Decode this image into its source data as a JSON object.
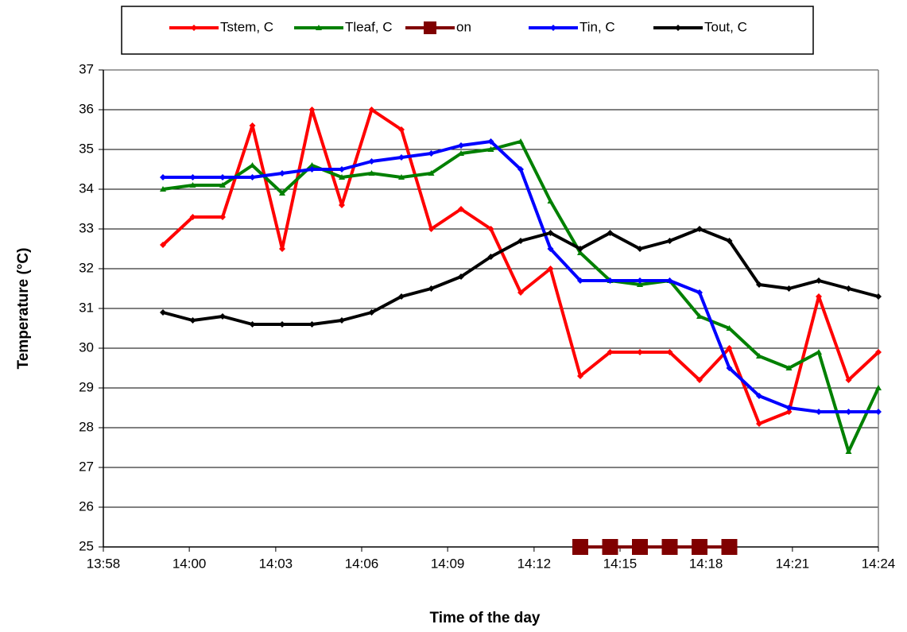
{
  "chart_data": {
    "type": "line",
    "x_label": "Time of the day",
    "y_label": "Temperature (°C)",
    "x": [
      "14:00",
      "14:01",
      "14:02",
      "14:03",
      "14:04",
      "14:05",
      "14:06",
      "14:07",
      "14:08",
      "14:09",
      "14:10",
      "14:11",
      "14:12",
      "14:13",
      "14:14",
      "14:15",
      "14:16",
      "14:17",
      "14:18",
      "14:19",
      "14:20",
      "14:21",
      "14:22",
      "14:23",
      "14:24"
    ],
    "series": [
      {
        "name": "Tstem, C",
        "color": "#ff0000",
        "marker": "diamond",
        "values": [
          32.6,
          33.3,
          33.3,
          35.6,
          32.5,
          36.0,
          33.6,
          36.0,
          35.5,
          33.0,
          33.5,
          33.0,
          31.4,
          32.0,
          29.3,
          29.9,
          29.9,
          29.9,
          29.2,
          30.0,
          28.1,
          28.4,
          31.3,
          29.2,
          29.9
        ]
      },
      {
        "name": "Tleaf, C",
        "color": "#008000",
        "marker": "triangle",
        "values": [
          34.0,
          34.1,
          34.1,
          34.6,
          33.9,
          34.6,
          34.3,
          34.4,
          34.3,
          34.4,
          34.9,
          35.0,
          35.2,
          33.7,
          32.4,
          31.7,
          31.6,
          31.7,
          30.8,
          30.5,
          29.8,
          29.5,
          29.9,
          27.4,
          29.0
        ]
      },
      {
        "name": "on",
        "color": "#800000",
        "marker": "square",
        "values": [
          null,
          null,
          null,
          null,
          null,
          null,
          null,
          null,
          null,
          null,
          null,
          null,
          null,
          null,
          25,
          25,
          25,
          25,
          25,
          25,
          null,
          null,
          null,
          null,
          null
        ]
      },
      {
        "name": "Tin, C",
        "color": "#0000ff",
        "marker": "diamond",
        "values": [
          34.3,
          34.3,
          34.3,
          34.3,
          34.4,
          34.5,
          34.5,
          34.7,
          34.8,
          34.9,
          35.1,
          35.2,
          34.5,
          32.5,
          31.7,
          31.7,
          31.7,
          31.7,
          31.4,
          29.5,
          28.8,
          28.5,
          28.4,
          28.4,
          28.4
        ]
      },
      {
        "name": "Tout, C",
        "color": "#000000",
        "marker": "diamond",
        "values": [
          30.9,
          30.7,
          30.8,
          30.6,
          30.6,
          30.6,
          30.7,
          30.9,
          31.3,
          31.5,
          31.8,
          32.3,
          32.7,
          32.9,
          32.5,
          32.9,
          32.5,
          32.7,
          33.0,
          32.7,
          31.6,
          31.5,
          31.7,
          31.5,
          31.3
        ]
      }
    ],
    "xlim": [
      "13:58",
      "14:24"
    ],
    "xticks": [
      {
        "value": "13:58:00",
        "label": "13:58"
      },
      {
        "value": "14:00:53",
        "label": "14:00"
      },
      {
        "value": "14:03:47",
        "label": "14:03"
      },
      {
        "value": "14:06:40",
        "label": "14:06"
      },
      {
        "value": "14:09:33",
        "label": "14:09"
      },
      {
        "value": "14:12:27",
        "label": "14:12"
      },
      {
        "value": "14:15:20",
        "label": "14:15"
      },
      {
        "value": "14:18:13",
        "label": "14:18"
      },
      {
        "value": "14:21:07",
        "label": "14:21"
      },
      {
        "value": "14:24:00",
        "label": "14:24"
      }
    ],
    "ylim": [
      25,
      37
    ],
    "yticks": [
      25,
      26,
      27,
      28,
      29,
      30,
      31,
      32,
      33,
      34,
      35,
      36,
      37
    ],
    "grid": true,
    "legend": "top"
  }
}
